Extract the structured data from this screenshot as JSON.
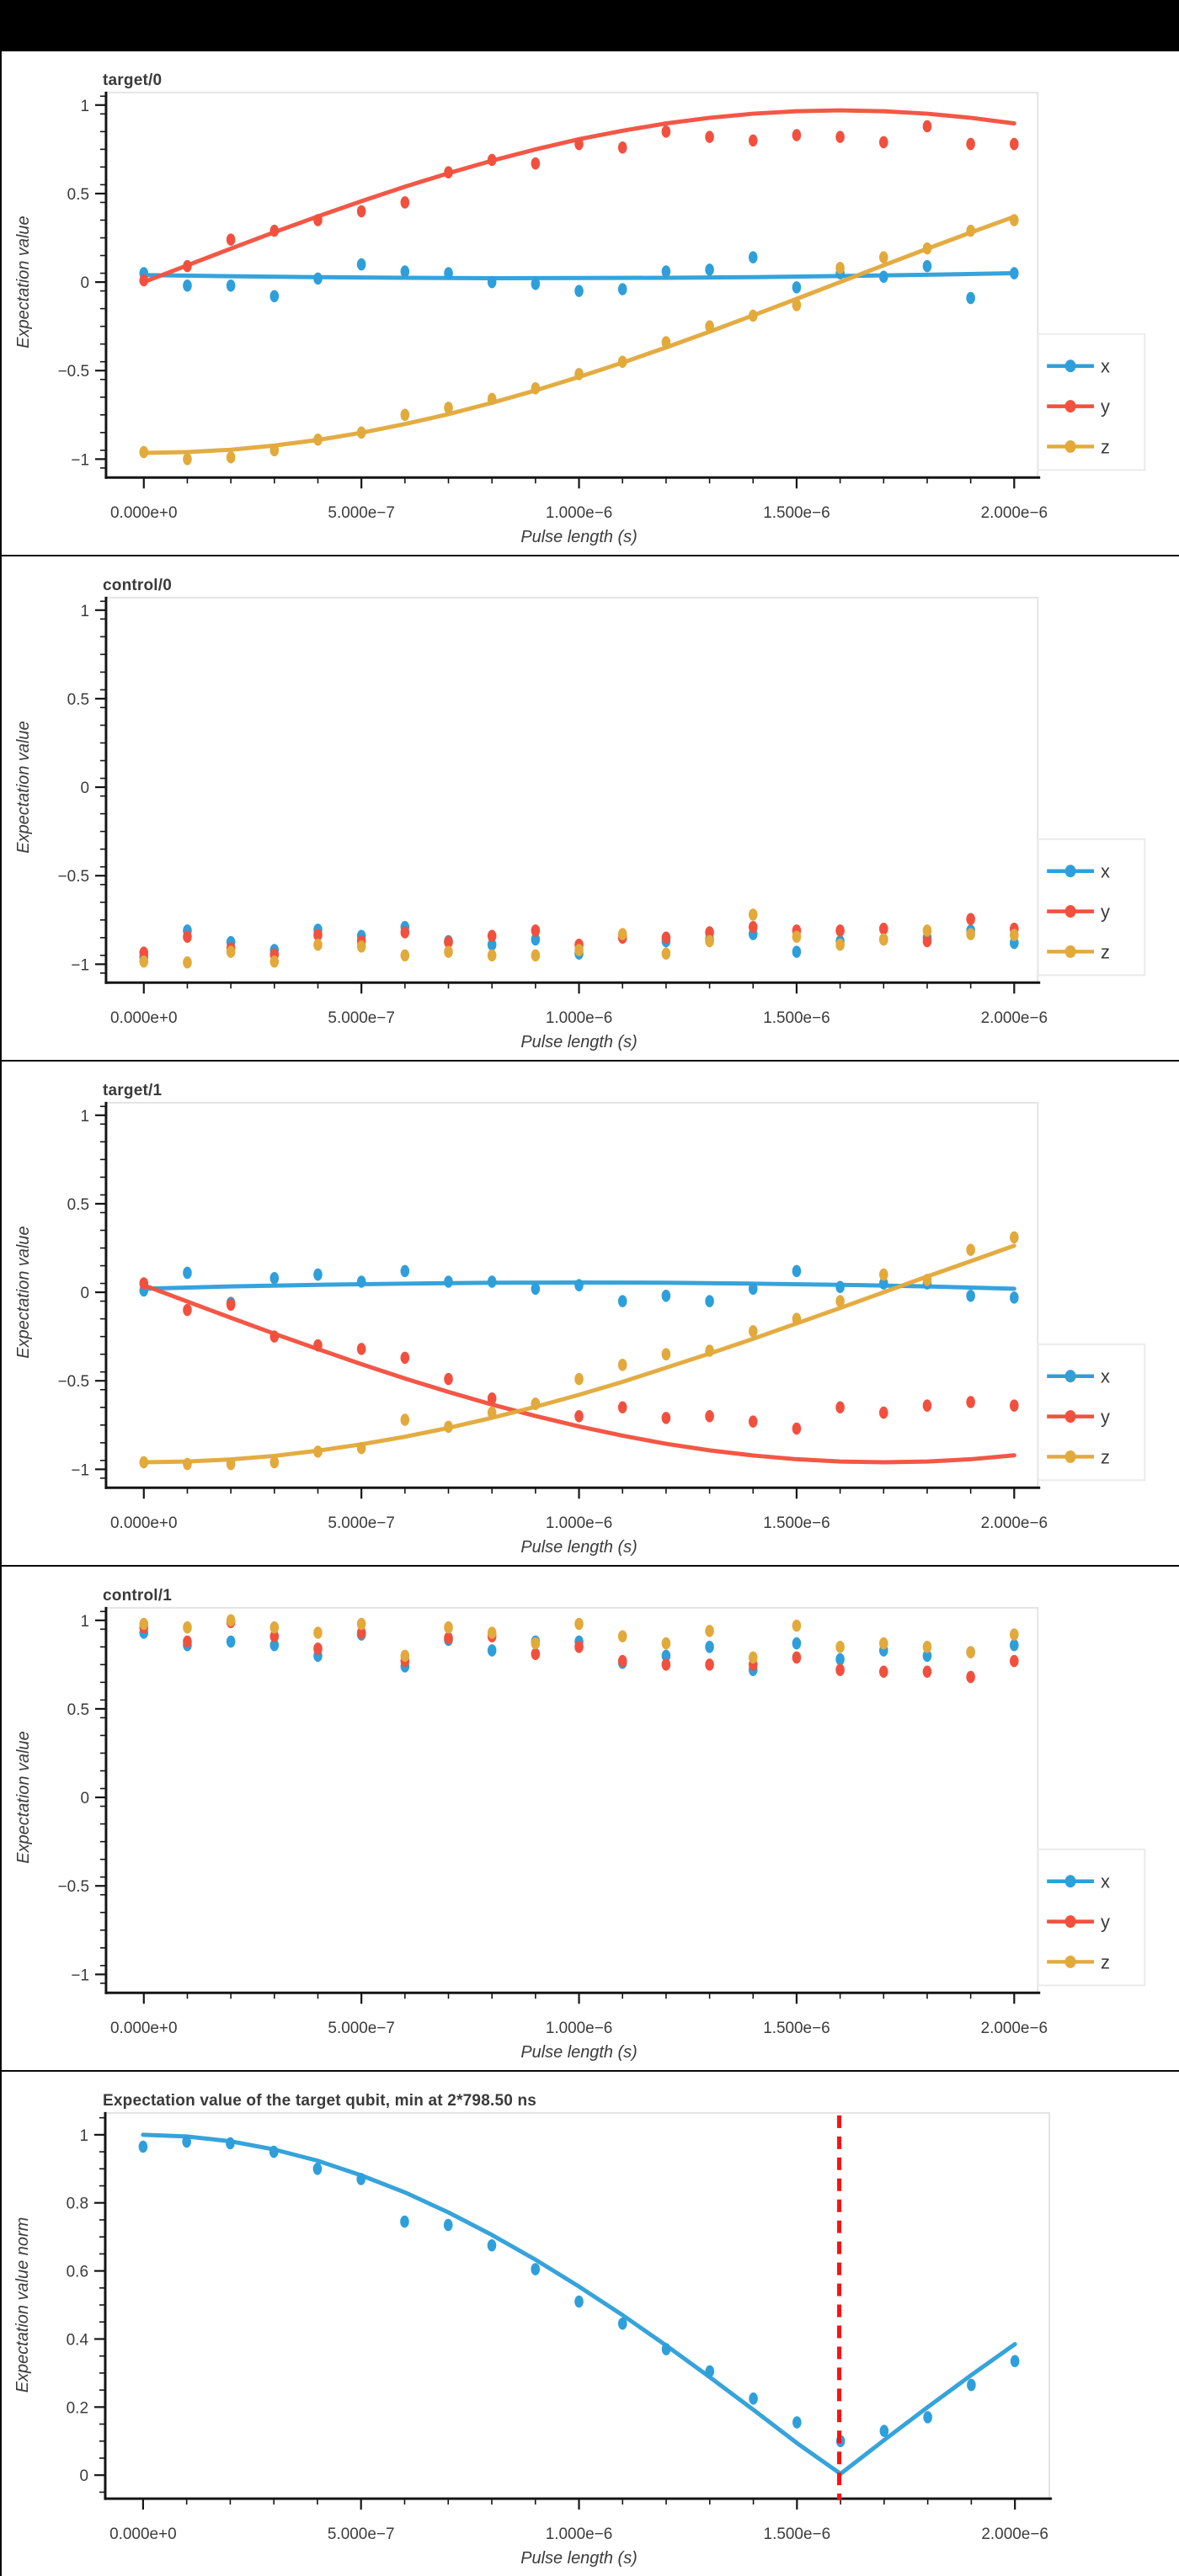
{
  "page": {
    "top_bar_color": "#000000",
    "background": "#FFFFFF"
  },
  "colors": {
    "x": "#2E9FDA",
    "y": "#F2503E",
    "z": "#E2A93B",
    "axis": "#151515",
    "text": "#3B3B3B",
    "frame": "#E4E4E4",
    "legend_border": "#EBEBEB",
    "legend_background": "#FFFFFF",
    "vline": "#FE1010",
    "top_bar": "#000000"
  },
  "x_axis": {
    "title": "Pulse length (s)",
    "tick_labels": [
      "0.000e+0",
      "5.000e−7",
      "1.000e−6",
      "1.500e−6",
      "2.000e−6"
    ],
    "tick_values_us": [
      0,
      0.5,
      1,
      1.5,
      2
    ],
    "minor_step_us": 0.1
  },
  "x_us": [
    0,
    0.1,
    0.2,
    0.3,
    0.4,
    0.5,
    0.6,
    0.7,
    0.8,
    0.9,
    1.0,
    1.1,
    1.2,
    1.3,
    1.4,
    1.5,
    1.6,
    1.7,
    1.8,
    1.9,
    2.0
  ],
  "fit_u11": [
    0,
    0.2,
    0.4,
    0.6,
    0.8,
    1.0,
    1.2,
    1.4,
    1.6,
    1.8,
    2.0
  ],
  "chart_data": [
    {
      "type": "scatter",
      "title": "target/0",
      "xlabel": "Pulse length (s)",
      "ylabel": "Expectation value",
      "y_ticks": {
        "labels": [
          "1",
          "0.5",
          "0",
          "−0.5",
          "−1"
        ],
        "values": [
          1,
          0.5,
          0,
          -0.5,
          -1
        ],
        "minor_step": 0.1
      },
      "y_minor_range": [
        -1.05,
        1.05
      ],
      "legend": true,
      "legend_entries": [
        "x",
        "y",
        "z"
      ],
      "series": [
        {
          "name": "x",
          "color_key": "x",
          "points": [
            0.05,
            -0.02,
            -0.02,
            -0.08,
            0.02,
            0.1,
            0.06,
            0.05,
            0.0,
            -0.01,
            -0.05,
            -0.04,
            0.06,
            0.07,
            0.14,
            -0.03,
            0.05,
            0.03,
            0.09,
            -0.09,
            0.05
          ],
          "fit_u": [
            0,
            0.2,
            0.4,
            0.6,
            0.8,
            1.0,
            1.2,
            1.4,
            1.6,
            1.8,
            2.0
          ],
          "fit_v": [
            0.04,
            0.033,
            0.028,
            0.024,
            0.022,
            0.023,
            0.024,
            0.028,
            0.034,
            0.041,
            0.05
          ]
        },
        {
          "name": "y",
          "color_key": "y",
          "points": [
            0.01,
            0.09,
            0.24,
            0.29,
            0.35,
            0.4,
            0.45,
            0.62,
            0.69,
            0.67,
            0.78,
            0.76,
            0.85,
            0.82,
            0.8,
            0.83,
            0.82,
            0.79,
            0.88,
            0.78,
            0.78
          ],
          "fit_v": [
            0.0,
            0.095,
            0.189,
            0.282,
            0.371,
            0.457,
            0.539,
            0.615,
            0.686,
            0.75,
            0.807,
            0.855,
            0.896,
            0.928,
            0.951,
            0.965,
            0.97,
            0.965,
            0.951,
            0.928,
            0.896
          ]
        },
        {
          "name": "z",
          "color_key": "z",
          "points": [
            -0.96,
            -1.0,
            -0.99,
            -0.95,
            -0.89,
            -0.85,
            -0.75,
            -0.71,
            -0.66,
            -0.6,
            -0.52,
            -0.45,
            -0.34,
            -0.25,
            -0.19,
            -0.13,
            0.08,
            0.14,
            0.19,
            0.29,
            0.35
          ],
          "fit_v": [
            -0.965,
            -0.96,
            -0.947,
            -0.923,
            -0.892,
            -0.851,
            -0.802,
            -0.746,
            -0.682,
            -0.612,
            -0.536,
            -0.455,
            -0.369,
            -0.28,
            -0.188,
            -0.095,
            0.0,
            0.095,
            0.188,
            0.28,
            0.369
          ]
        }
      ]
    },
    {
      "type": "scatter",
      "title": "control/0",
      "xlabel": "Pulse length (s)",
      "ylabel": "Expectation value",
      "y_ticks": {
        "labels": [
          "1",
          "0.5",
          "0",
          "−0.5",
          "−1"
        ],
        "values": [
          1,
          0.5,
          0,
          -0.5,
          -1
        ],
        "minor_step": 0.1
      },
      "y_minor_range": [
        -1.05,
        1.05
      ],
      "legend": true,
      "legend_entries": [
        "x",
        "y",
        "z"
      ],
      "series": [
        {
          "name": "x",
          "color_key": "x",
          "points": [
            -0.96,
            -0.81,
            -0.875,
            -0.92,
            -0.805,
            -0.84,
            -0.79,
            -0.87,
            -0.89,
            -0.86,
            -0.94,
            -0.84,
            -0.87,
            -0.86,
            -0.83,
            -0.93,
            -0.87,
            -0.86,
            -0.85,
            -0.81,
            -0.88
          ]
        },
        {
          "name": "y",
          "color_key": "y",
          "points": [
            -0.935,
            -0.845,
            -0.91,
            -0.945,
            -0.835,
            -0.87,
            -0.82,
            -0.875,
            -0.84,
            -0.81,
            -0.89,
            -0.85,
            -0.85,
            -0.82,
            -0.79,
            -0.81,
            -0.81,
            -0.8,
            -0.87,
            -0.745,
            -0.8
          ]
        },
        {
          "name": "z",
          "color_key": "z",
          "points": [
            -0.985,
            -0.99,
            -0.93,
            -0.985,
            -0.89,
            -0.9,
            -0.95,
            -0.93,
            -0.95,
            -0.95,
            -0.92,
            -0.83,
            -0.94,
            -0.87,
            -0.72,
            -0.845,
            -0.89,
            -0.86,
            -0.81,
            -0.83,
            -0.835
          ]
        }
      ]
    },
    {
      "type": "scatter",
      "title": "target/1",
      "xlabel": "Pulse length (s)",
      "ylabel": "Expectation value",
      "y_ticks": {
        "labels": [
          "1",
          "0.5",
          "0",
          "−0.5",
          "−1"
        ],
        "values": [
          1,
          0.5,
          0,
          -0.5,
          -1
        ],
        "minor_step": 0.1
      },
      "y_minor_range": [
        -1.05,
        1.05
      ],
      "legend": true,
      "legend_entries": [
        "x",
        "y",
        "z"
      ],
      "series": [
        {
          "name": "x",
          "color_key": "x",
          "points": [
            0.01,
            0.11,
            -0.06,
            0.08,
            0.1,
            0.06,
            0.12,
            0.06,
            0.06,
            0.02,
            0.04,
            -0.05,
            -0.02,
            -0.05,
            0.02,
            0.12,
            0.03,
            0.05,
            0.05,
            -0.02,
            -0.03
          ],
          "fit_u": [
            0,
            0.2,
            0.4,
            0.6,
            0.8,
            1.0,
            1.2,
            1.4,
            1.6,
            1.8,
            2.0
          ],
          "fit_v": [
            0.02,
            0.033,
            0.042,
            0.049,
            0.054,
            0.055,
            0.054,
            0.049,
            0.042,
            0.033,
            0.02
          ]
        },
        {
          "name": "y",
          "color_key": "y",
          "points": [
            0.05,
            -0.1,
            -0.07,
            -0.25,
            -0.3,
            -0.32,
            -0.37,
            -0.49,
            -0.6,
            -0.63,
            -0.7,
            -0.65,
            -0.71,
            -0.7,
            -0.73,
            -0.77,
            -0.65,
            -0.68,
            -0.64,
            -0.62,
            -0.64
          ],
          "fit_v": [
            0.04,
            -0.052,
            -0.144,
            -0.234,
            -0.321,
            -0.406,
            -0.487,
            -0.563,
            -0.634,
            -0.699,
            -0.758,
            -0.81,
            -0.856,
            -0.893,
            -0.922,
            -0.943,
            -0.956,
            -0.96,
            -0.956,
            -0.943,
            -0.921
          ]
        },
        {
          "name": "z",
          "color_key": "z",
          "points": [
            -0.96,
            -0.97,
            -0.97,
            -0.96,
            -0.9,
            -0.88,
            -0.72,
            -0.76,
            -0.68,
            -0.63,
            -0.49,
            -0.41,
            -0.35,
            -0.33,
            -0.22,
            -0.15,
            -0.05,
            0.1,
            0.07,
            0.24,
            0.31
          ],
          "fit_v": [
            -0.96,
            -0.956,
            -0.944,
            -0.924,
            -0.895,
            -0.859,
            -0.816,
            -0.766,
            -0.709,
            -0.647,
            -0.579,
            -0.506,
            -0.426,
            -0.346,
            -0.263,
            -0.176,
            -0.089,
            0.0,
            0.089,
            0.176,
            0.263
          ]
        }
      ]
    },
    {
      "type": "scatter",
      "title": "control/1",
      "xlabel": "Pulse length (s)",
      "ylabel": "Expectation value",
      "y_ticks": {
        "labels": [
          "1",
          "0.5",
          "0",
          "−0.5",
          "−1"
        ],
        "values": [
          1,
          0.5,
          0,
          -0.5,
          -1
        ],
        "minor_step": 0.1
      },
      "y_minor_range": [
        -1.05,
        1.05
      ],
      "legend": true,
      "legend_entries": [
        "x",
        "y",
        "z"
      ],
      "series": [
        {
          "name": "x",
          "color_key": "x",
          "points": [
            0.93,
            0.86,
            0.88,
            0.86,
            0.8,
            0.92,
            0.74,
            0.89,
            0.83,
            0.88,
            0.88,
            0.76,
            0.8,
            0.85,
            0.72,
            0.87,
            0.78,
            0.83,
            0.8,
            0.82,
            0.86
          ]
        },
        {
          "name": "y",
          "color_key": "y",
          "points": [
            0.96,
            0.88,
            0.99,
            0.91,
            0.84,
            0.93,
            0.77,
            0.9,
            0.91,
            0.81,
            0.85,
            0.77,
            0.75,
            0.75,
            0.75,
            0.79,
            0.72,
            0.71,
            0.71,
            0.68,
            0.77
          ]
        },
        {
          "name": "z",
          "color_key": "z",
          "points": [
            0.98,
            0.96,
            1.0,
            0.96,
            0.93,
            0.98,
            0.8,
            0.96,
            0.93,
            0.87,
            0.98,
            0.91,
            0.87,
            0.94,
            0.79,
            0.97,
            0.85,
            0.87,
            0.85,
            0.82,
            0.92
          ]
        }
      ]
    },
    {
      "type": "scatter",
      "title": "Expectation value of the target qubit, min at 2*798.50 ns",
      "xlabel": "Pulse length (s)",
      "ylabel": "Expectation value norm",
      "y_ticks": {
        "labels": [
          "1",
          "0.8",
          "0.6",
          "0.4",
          "0.2",
          "0"
        ],
        "values": [
          1,
          0.8,
          0.6,
          0.4,
          0.2,
          0
        ],
        "minor_step": 0.05
      },
      "y_minor_range": [
        -0.05,
        1.05
      ],
      "legend": false,
      "vline": {
        "x_us": 1.597,
        "color_key": "vline",
        "style": "dashed"
      },
      "series": [
        {
          "name": "x",
          "color_key": "x",
          "points": [
            0.965,
            0.98,
            0.975,
            0.95,
            0.9,
            0.87,
            0.745,
            0.735,
            0.675,
            0.605,
            0.51,
            0.445,
            0.37,
            0.305,
            0.225,
            0.155,
            0.1,
            0.13,
            0.17,
            0.265,
            0.335
          ],
          "fit_v": [
            1.0,
            0.995,
            0.981,
            0.957,
            0.924,
            0.881,
            0.831,
            0.772,
            0.706,
            0.633,
            0.554,
            0.47,
            0.381,
            0.288,
            0.192,
            0.094,
            0.004,
            0.103,
            0.2,
            0.294,
            0.385
          ]
        }
      ]
    }
  ]
}
